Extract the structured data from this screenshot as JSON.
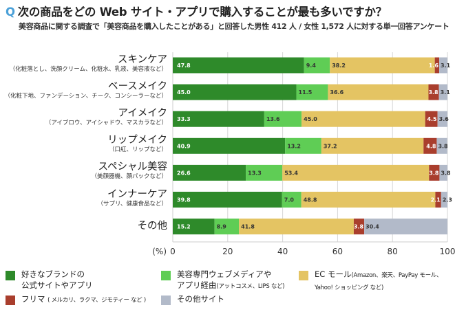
{
  "header": {
    "q_mark": "Q",
    "title": "次の商品をどの Web サイト・アプリで購入することが最も多いですか？",
    "subtitle": "美容商品に関する調査で「美容商品を購入したことがある」と回答した男性 412 人 / 女性 1,572 人に対する単一回答アンケート"
  },
  "chart_data": {
    "type": "bar",
    "orientation": "horizontal",
    "stacked": true,
    "categories": [
      {
        "label": "スキンケア",
        "note": "（化粧落とし、洗顔クリーム、化粧水、乳液、美容液など）"
      },
      {
        "label": "ベースメイク",
        "note": "（化粧下地、ファンデーション、チーク、コンシーラーなど）"
      },
      {
        "label": "アイメイク",
        "note": "（アイブロウ、アイシャドウ、マスカラなど）"
      },
      {
        "label": "リップメイク",
        "note": "（口紅、リップなど）"
      },
      {
        "label": "スペシャル美容",
        "note": "（美顔器機、顔パックなど）"
      },
      {
        "label": "インナーケア",
        "note": "（サプリ、健康食品など）"
      },
      {
        "label": "その他",
        "note": ""
      }
    ],
    "series": [
      {
        "name": "好きなブランドの公式サイトやアプリ",
        "color": "#2e8a2a",
        "label_color": "#ffffff",
        "values": [
          47.8,
          45.0,
          33.3,
          40.9,
          26.6,
          39.8,
          15.2
        ]
      },
      {
        "name": "美容専門ウェブメディアやアプリ経由",
        "color": "#5fcd55",
        "label_color": "#333333",
        "values": [
          9.4,
          11.5,
          13.6,
          13.2,
          13.3,
          7.0,
          8.9
        ]
      },
      {
        "name": "EC モール",
        "color": "#e4c463",
        "label_color": "#333333",
        "values": [
          38.2,
          36.6,
          45.0,
          37.2,
          53.4,
          48.8,
          41.8
        ]
      },
      {
        "name": "フリマ",
        "color": "#a93e2d",
        "label_color": "#ffffff",
        "values": [
          1.6,
          3.8,
          4.5,
          4.8,
          3.8,
          2.1,
          3.8
        ]
      },
      {
        "name": "その他サイト",
        "color": "#b2bac9",
        "label_color": "#333333",
        "values": [
          3.1,
          3.1,
          3.6,
          3.8,
          3.8,
          2.3,
          30.4
        ]
      }
    ],
    "xlim": [
      0,
      100
    ],
    "xticks": [
      "0",
      "20",
      "40",
      "60",
      "80",
      "100"
    ],
    "xlabel": "(%)",
    "grid": true,
    "legend_position": "bottom"
  },
  "legend": [
    {
      "line1": "好きなブランドの",
      "line2": "公式サイトやアプリ",
      "small": ""
    },
    {
      "line1": "美容専門ウェブメディアや",
      "line2": "アプリ経由",
      "small": "(アットコスメ、LIPS など)"
    },
    {
      "line1": "EC モール",
      "small1": "(Amazon、楽天、PayPay モール、",
      "line2": "",
      "small": "Yahoo! ショッピング など)"
    },
    {
      "line1": "フリマ",
      "small": "( メルカリ、ラクマ、ジモティー など )"
    },
    {
      "line1": "その他サイト"
    }
  ]
}
